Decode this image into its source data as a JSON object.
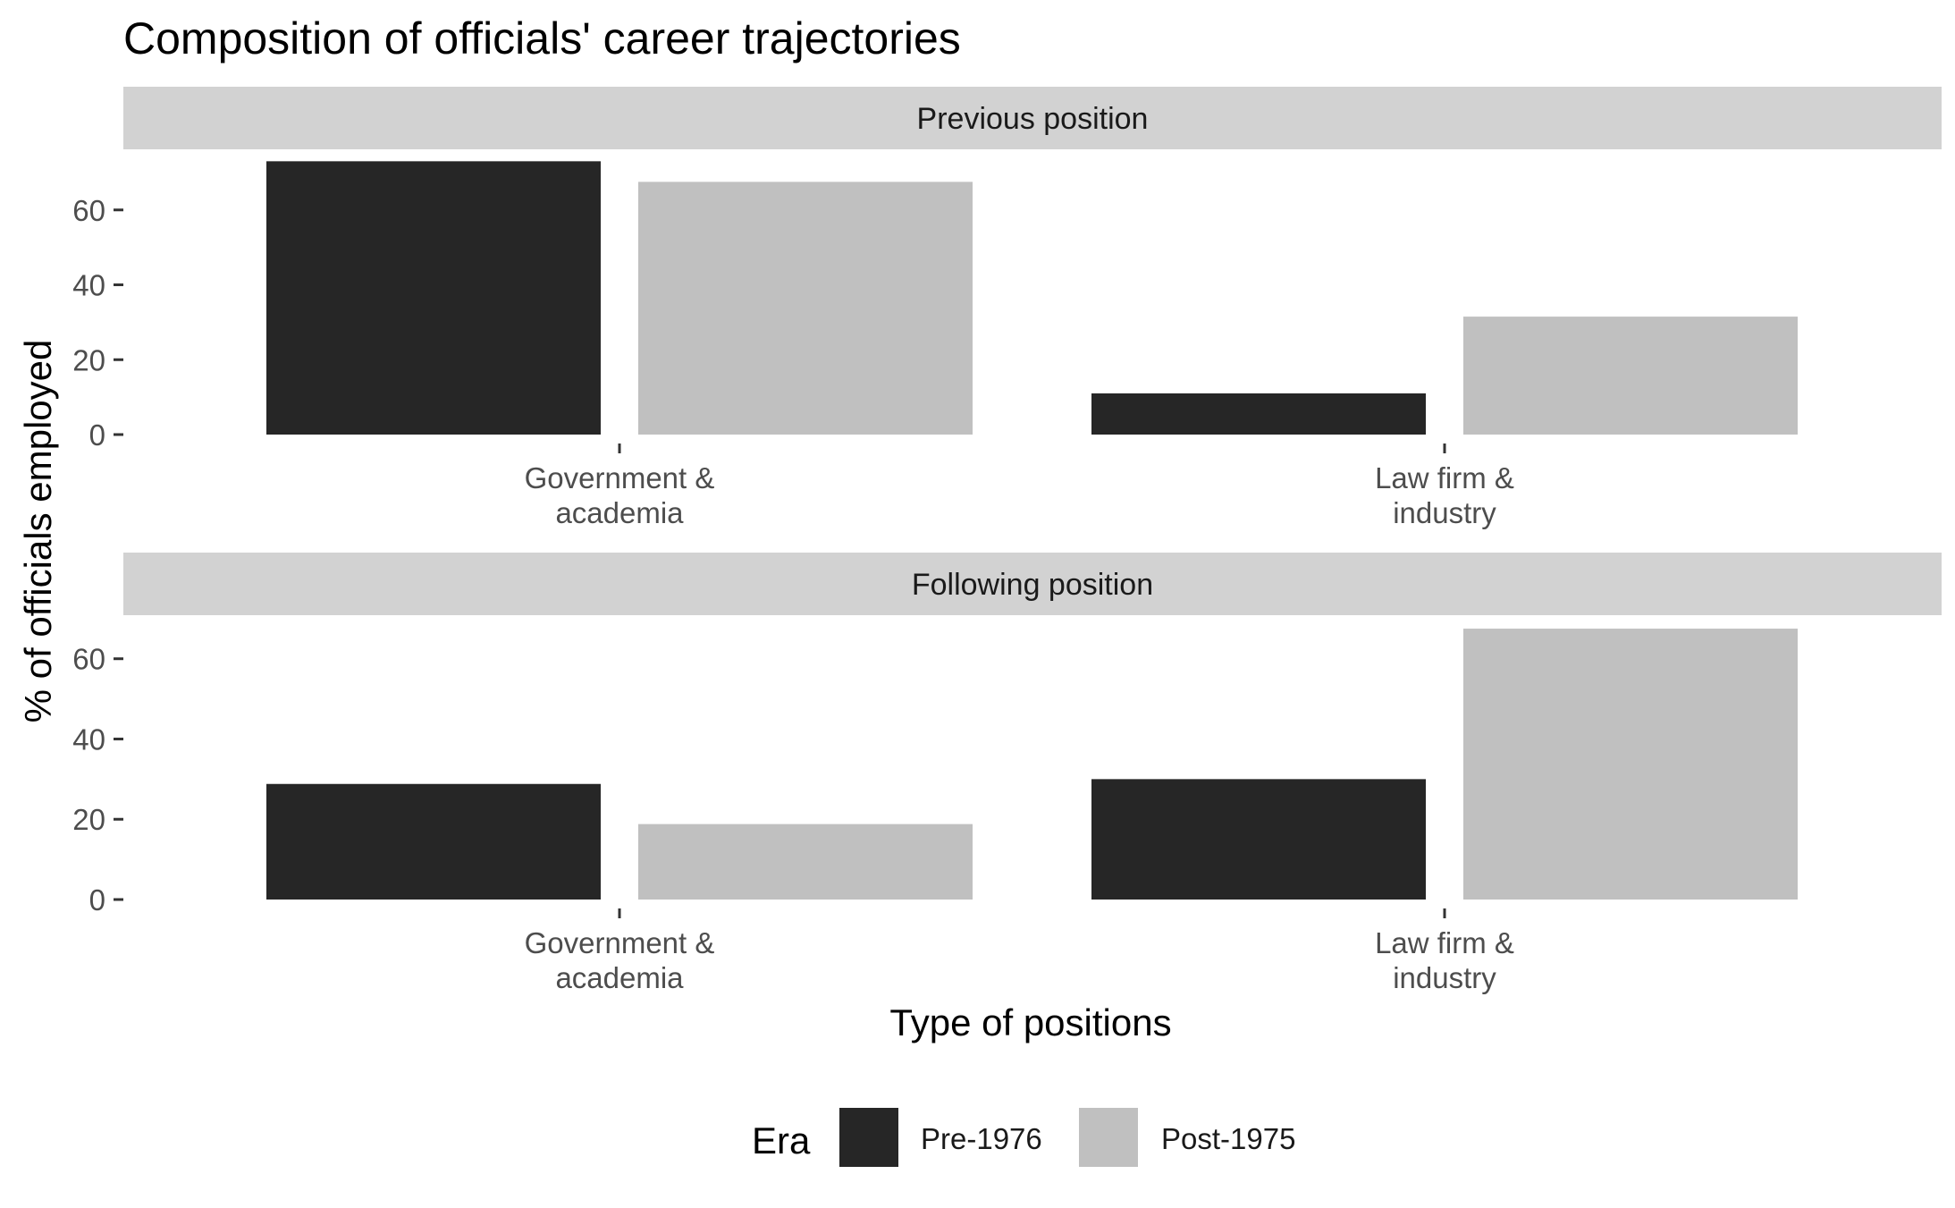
{
  "chart_data": {
    "type": "bar",
    "title": "Composition of officials' career trajectories",
    "xlabel": "Type of positions",
    "ylabel": "% of officials employed",
    "categories": [
      [
        "Government &",
        "academia"
      ],
      [
        "Law firm &",
        "industry"
      ]
    ],
    "yticks": [
      0,
      20,
      40,
      60
    ],
    "ylim": [
      0,
      73
    ],
    "grid": false,
    "legend": {
      "title": "Era",
      "position": "bottom",
      "entries": [
        {
          "name": "Pre-1976",
          "color": "#262626"
        },
        {
          "name": "Post-1975",
          "color": "#c0c0c0"
        }
      ]
    },
    "panels": [
      {
        "label": "Previous position",
        "series": [
          {
            "name": "Pre-1976",
            "values": [
              73.0,
              11.0
            ]
          },
          {
            "name": "Post-1975",
            "values": [
              67.5,
              31.5
            ]
          }
        ]
      },
      {
        "label": "Following position",
        "series": [
          {
            "name": "Pre-1976",
            "values": [
              28.8,
              30.0
            ]
          },
          {
            "name": "Post-1975",
            "values": [
              18.8,
              67.5
            ]
          }
        ]
      }
    ],
    "colors": {
      "strip_background": "#d2d2d2",
      "tick_color": "#333333"
    }
  }
}
